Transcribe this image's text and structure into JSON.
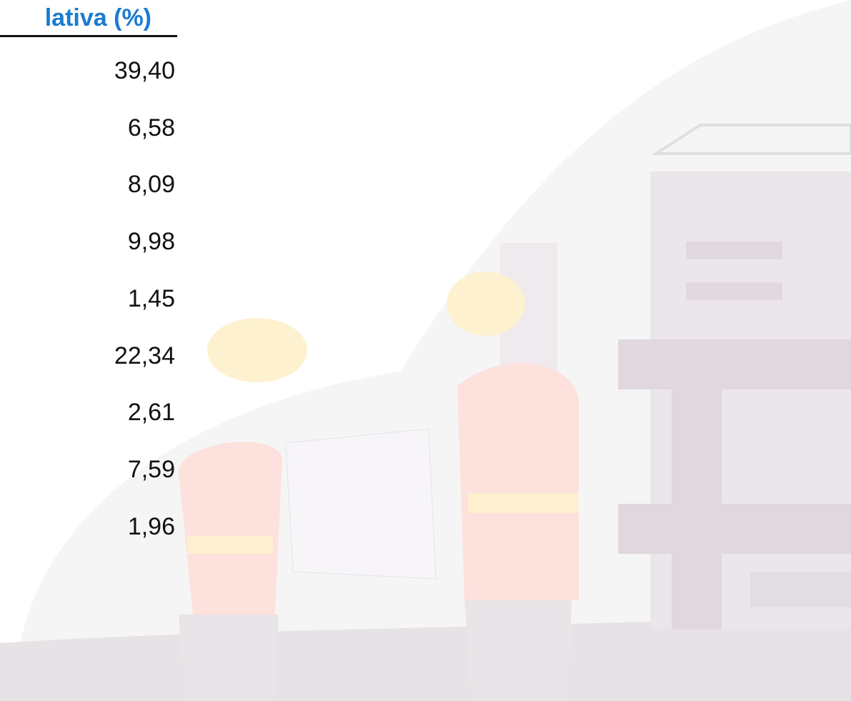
{
  "table": {
    "header": "lativa (%)",
    "rows": [
      [
        "39,40"
      ],
      [
        "6,58"
      ],
      [
        "8,09"
      ],
      [
        "9,98"
      ],
      [
        "1,45"
      ],
      [
        "22,34"
      ],
      [
        "2,61"
      ],
      [
        "7,59"
      ],
      [
        "1,96"
      ]
    ]
  }
}
